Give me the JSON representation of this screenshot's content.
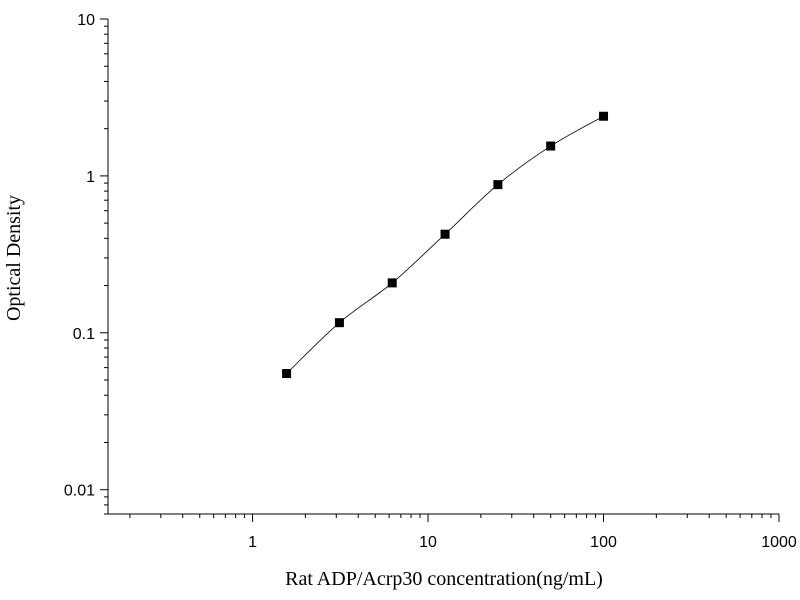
{
  "chart_data": {
    "type": "scatter",
    "title": "",
    "xlabel": "Rat ADP/Acrp30 concentration(ng/mL)",
    "ylabel": "Optical Density",
    "x_scale": "log",
    "y_scale": "log",
    "xlim": [
      0.15,
      1000
    ],
    "ylim": [
      0.007,
      10
    ],
    "x_ticks": [
      {
        "value": 1,
        "label": "1"
      },
      {
        "value": 10,
        "label": "10"
      },
      {
        "value": 100,
        "label": "100"
      },
      {
        "value": 1000,
        "label": "1000"
      }
    ],
    "y_ticks": [
      {
        "value": 0.01,
        "label": "0.01"
      },
      {
        "value": 0.1,
        "label": "0.1"
      },
      {
        "value": 1,
        "label": "1"
      },
      {
        "value": 10,
        "label": "10"
      }
    ],
    "grid": false,
    "legend": "none",
    "series": [
      {
        "x": [
          1.5625,
          3.125,
          6.25,
          12.5,
          25,
          50,
          100
        ],
        "y": [
          0.055,
          0.116,
          0.208,
          0.425,
          0.88,
          1.55,
          2.4
        ],
        "marker": "square",
        "color": "#000000",
        "fit_line": true
      }
    ]
  }
}
